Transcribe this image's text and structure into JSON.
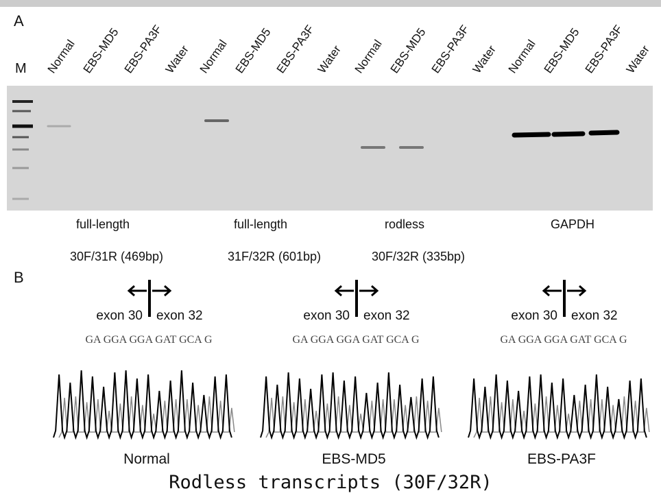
{
  "panel_a": {
    "label": "A",
    "marker": "M",
    "lanes": [
      [
        "Normal",
        "EBS-MD5",
        "EBS-PA3F",
        "Water"
      ],
      [
        "Normal",
        "EBS-MD5",
        "EBS-PA3F",
        "Water"
      ],
      [
        "Normal",
        "EBS-MD5",
        "EBS-PA3F",
        "Water"
      ],
      [
        "Normal",
        "EBS-MD5",
        "EBS-PA3F",
        "Water"
      ]
    ],
    "groups": [
      {
        "name": "full-length",
        "primers": "30F/31R (469bp)"
      },
      {
        "name": "full-length",
        "primers": "31F/32R (601bp)"
      },
      {
        "name": "rodless",
        "primers": "30F/32R (335bp)"
      },
      {
        "name": "GAPDH"
      }
    ]
  },
  "panel_b": {
    "label": "B",
    "panels": [
      {
        "left": "exon 30",
        "right": "exon 32",
        "sequence": "GA GGA GGA GAT GCA G",
        "sample": "Normal"
      },
      {
        "left": "exon 30",
        "right": "exon 32",
        "sequence": "GA GGA GGA GAT GCA G",
        "sample": "EBS-MD5"
      },
      {
        "left": "exon 30",
        "right": "exon 32",
        "sequence": "GA GGA GGA GAT GCA G",
        "sample": "EBS-PA3F"
      }
    ],
    "title": "Rodless transcripts (30F/32R)"
  }
}
